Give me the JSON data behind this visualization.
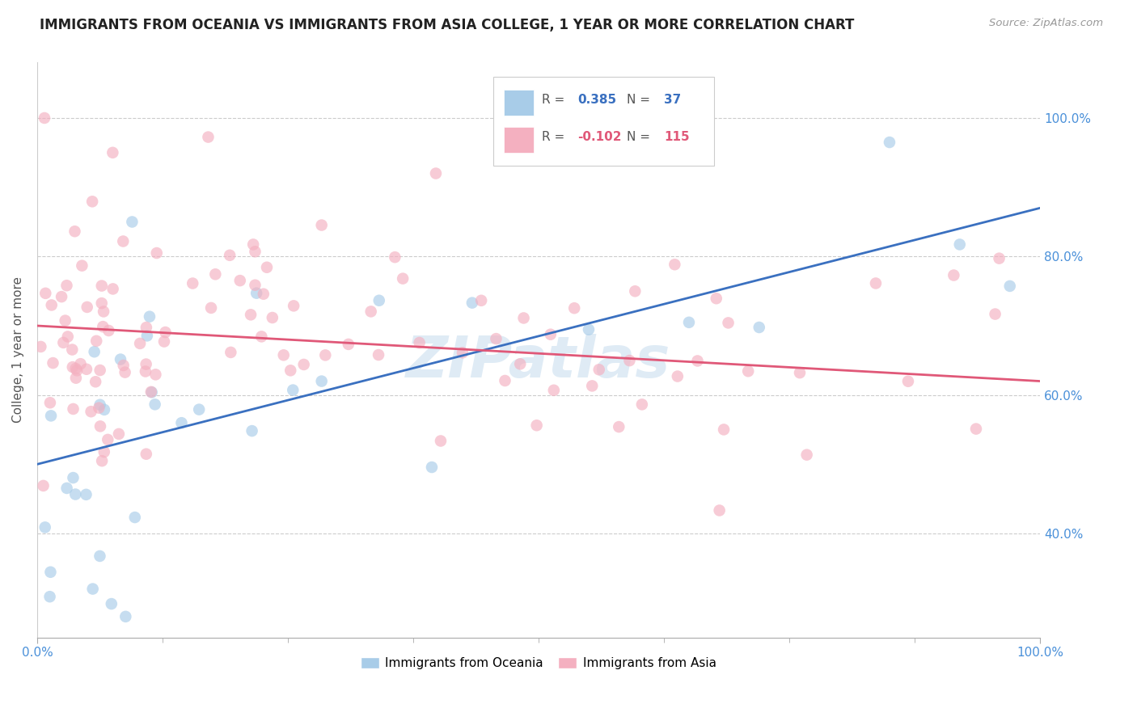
{
  "title": "IMMIGRANTS FROM OCEANIA VS IMMIGRANTS FROM ASIA COLLEGE, 1 YEAR OR MORE CORRELATION CHART",
  "source_text": "Source: ZipAtlas.com",
  "ylabel": "College, 1 year or more",
  "legend_oceania": "Immigrants from Oceania",
  "legend_asia": "Immigrants from Asia",
  "R_oceania": 0.385,
  "N_oceania": 37,
  "R_asia": -0.102,
  "N_asia": 115,
  "color_oceania": "#a8cce8",
  "color_asia": "#f4b0c0",
  "color_line_oceania": "#3a70c0",
  "color_line_asia": "#e05878",
  "watermark": "ZIPatlas",
  "xlim": [
    0,
    100
  ],
  "ylim": [
    25,
    108
  ],
  "y_ticks": [
    40,
    60,
    80,
    100
  ],
  "y_tick_labels": [
    "40.0%",
    "60.0%",
    "80.0%",
    "100.0%"
  ],
  "blue_line_start": 50,
  "blue_line_end": 87,
  "pink_line_start": 70,
  "pink_line_end": 62
}
